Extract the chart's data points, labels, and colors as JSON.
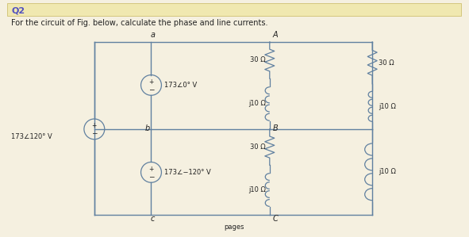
{
  "title": "Q2",
  "subtitle": "For the circuit of Fig. below, calculate the phase and line currents.",
  "bg_color": "#f5f0e0",
  "header_color": "#f0e8b0",
  "line_color": "#6080a0",
  "text_color": "#222222",
  "label_a": "a",
  "label_b": "b",
  "label_c": "c",
  "label_A": "A",
  "label_B": "B",
  "label_C": "C",
  "voltage1": "173∠0° V",
  "voltage2": "173∠−120° V",
  "voltage3": "173∠120° V",
  "r30": "30 Ω",
  "j10": "j10 Ω",
  "footer": "pages"
}
